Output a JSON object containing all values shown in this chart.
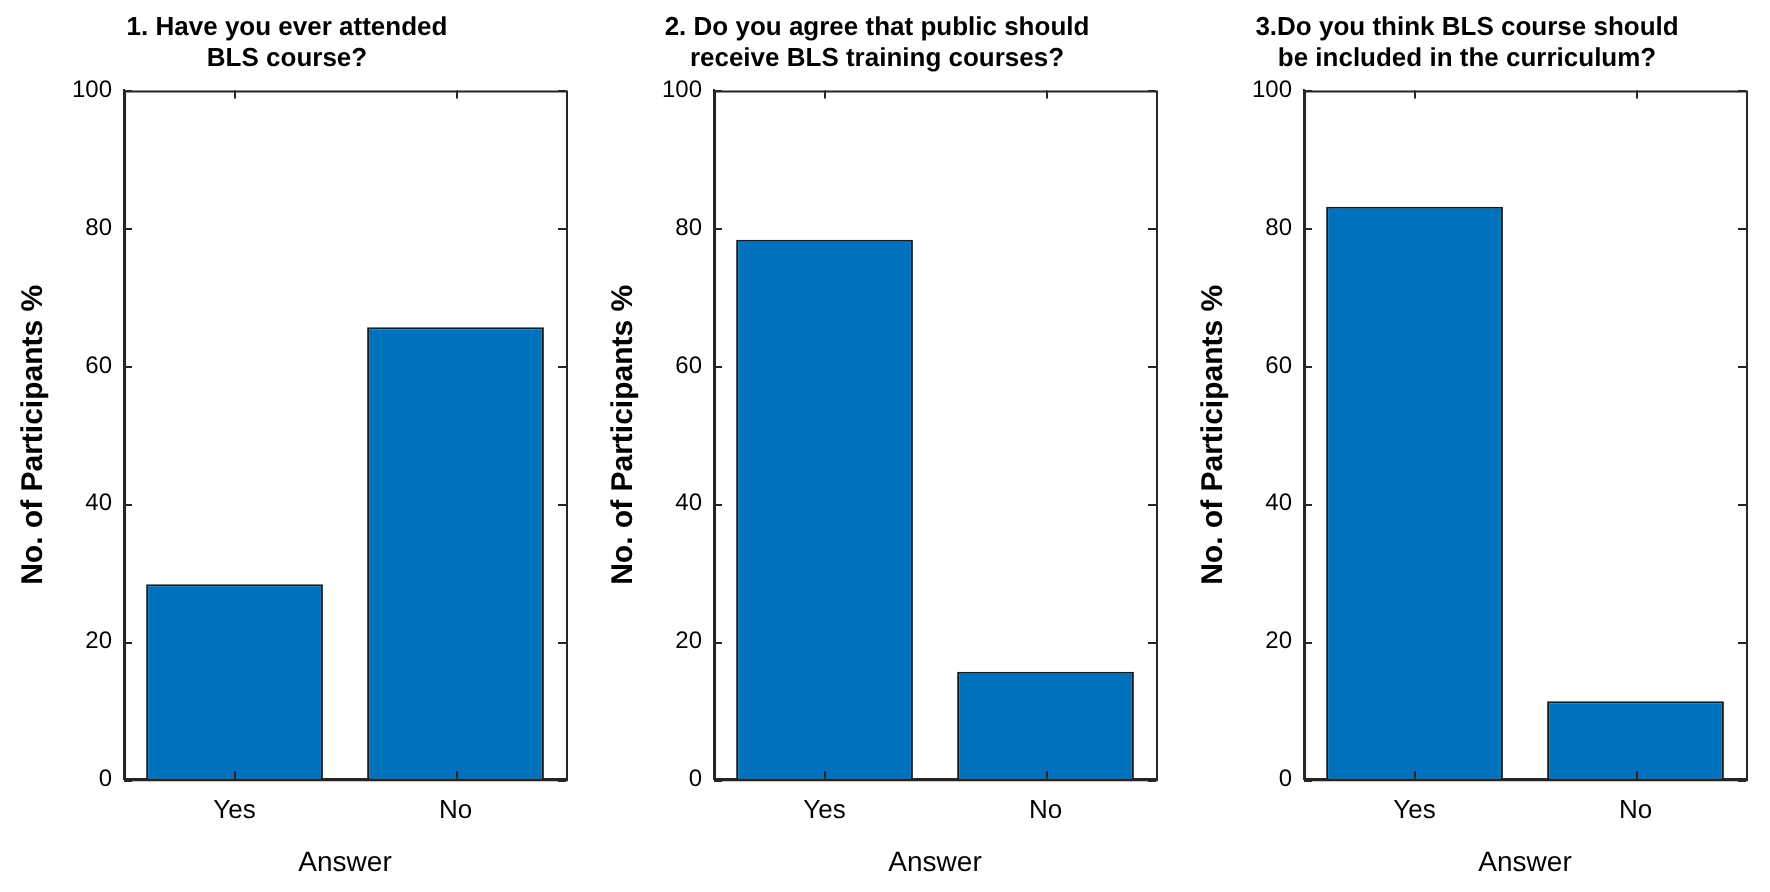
{
  "chart_data": [
    {
      "type": "bar",
      "title": "1. Have you ever attended\nBLS course?",
      "xlabel": "Answer",
      "ylabel": "No. of Participants %",
      "categories": [
        "Yes",
        "No"
      ],
      "values": [
        28.3,
        65.6
      ],
      "color": "#0072bd",
      "ylim": [
        0,
        100
      ],
      "yticks": [
        0,
        20,
        40,
        60,
        80,
        100
      ],
      "grid": false
    },
    {
      "type": "bar",
      "title": "2. Do you agree that public should\nreceive BLS training courses?",
      "xlabel": "Answer",
      "ylabel": "No. of Participants %",
      "categories": [
        "Yes",
        "No"
      ],
      "values": [
        78.3,
        15.6
      ],
      "color": "#0072bd",
      "ylim": [
        0,
        100
      ],
      "yticks": [
        0,
        20,
        40,
        60,
        80,
        100
      ],
      "grid": false
    },
    {
      "type": "bar",
      "title": "3.Do you think BLS course should\nbe included in the curriculum?",
      "xlabel": "Answer",
      "ylabel": "No. of Participants %",
      "categories": [
        "Yes",
        "No"
      ],
      "values": [
        83.1,
        11.3
      ],
      "color": "#0072bd",
      "ylim": [
        0,
        100
      ],
      "yticks": [
        0,
        20,
        40,
        60,
        80,
        100
      ],
      "grid": false
    }
  ]
}
